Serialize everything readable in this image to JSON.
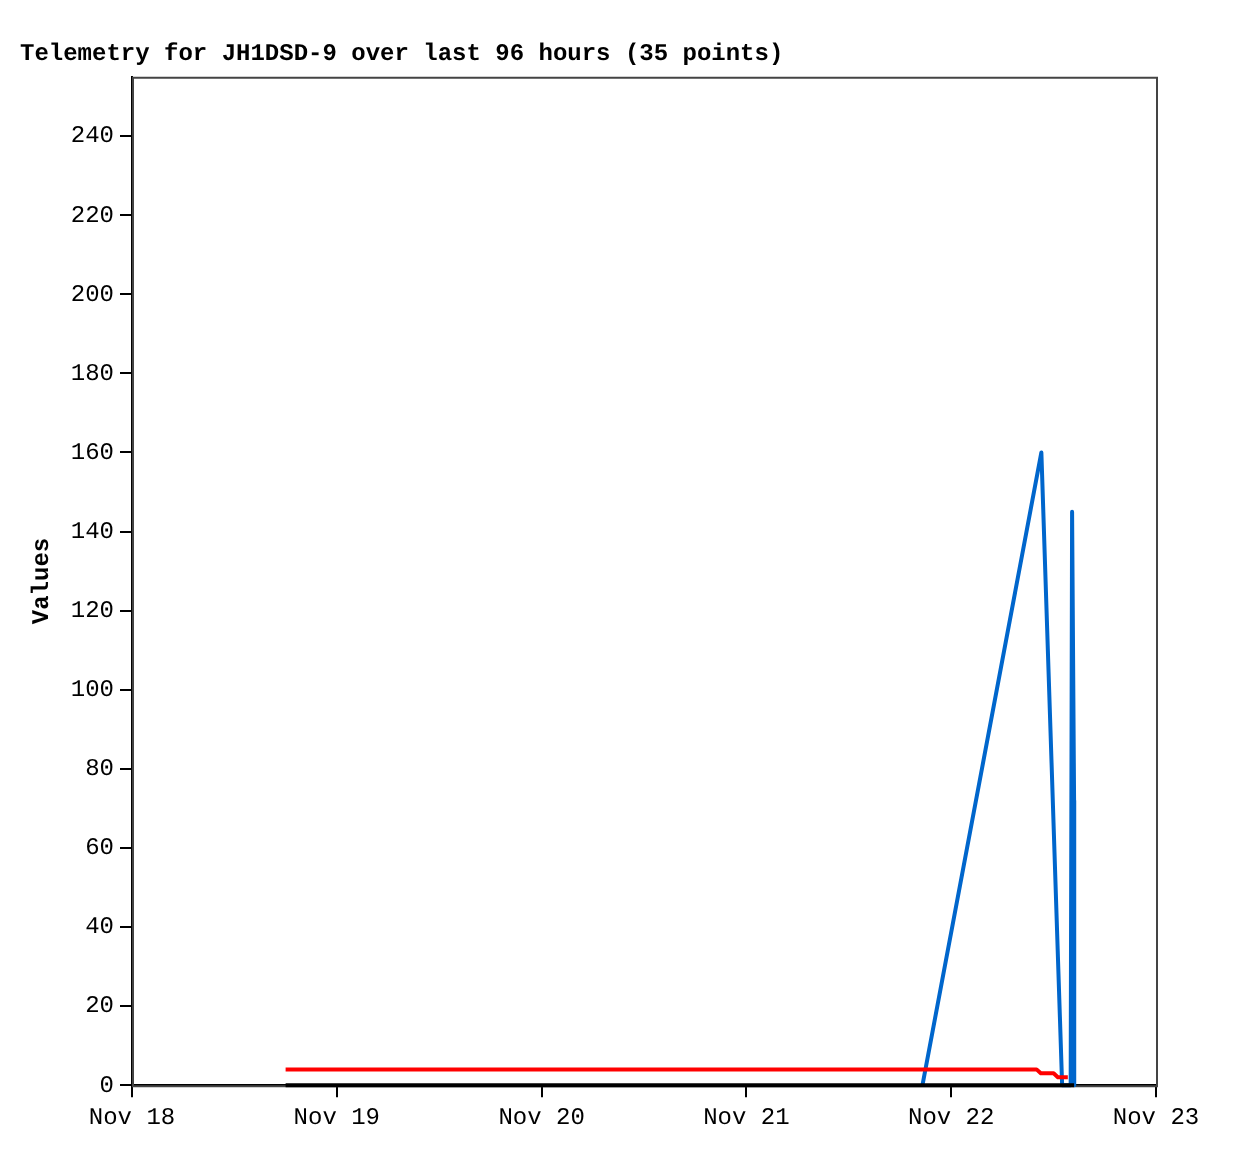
{
  "chart_data": {
    "type": "line",
    "title": "Telemetry for JH1DSD-9 over last 96 hours (35 points)",
    "ylabel": "Values",
    "xlim": [
      "--11-18",
      "--11-23"
    ],
    "xticks": [
      {
        "value": "--11-18",
        "label": "Nov 18"
      },
      {
        "value": "--11-19",
        "label": "Nov 19"
      },
      {
        "value": "--11-20",
        "label": "Nov 20"
      },
      {
        "value": "--11-21",
        "label": "Nov 21"
      },
      {
        "value": "--11-22",
        "label": "Nov 22"
      },
      {
        "value": "--11-23",
        "label": "Nov 23"
      }
    ],
    "ylim": [
      0,
      255
    ],
    "yticks": [
      0,
      20,
      40,
      60,
      80,
      100,
      120,
      140,
      160,
      180,
      200,
      220,
      240
    ],
    "grid": false,
    "legend": false,
    "marker": "none",
    "line_style": "solid",
    "series": [
      {
        "color": "#000000",
        "x": [
          "--11-18T18:00",
          "--11-22T14:24"
        ],
        "values": [
          0,
          0
        ]
      },
      {
        "color": "#ff0000",
        "x": [
          "--11-18T18:00",
          "--11-22T10:00",
          "--11-22T10:30",
          "--11-22T12:00",
          "--11-22T12:30",
          "--11-22T13:40"
        ],
        "values": [
          4,
          4,
          3,
          3,
          2,
          2
        ]
      },
      {
        "color": "#0066cc",
        "x": [
          "--11-21T20:38",
          "--11-22T10:34",
          "--11-22T13:00",
          "--11-22T14:00",
          "--11-22T14:10",
          "--11-22T14:24",
          "--11-22T14:25"
        ],
        "values": [
          0,
          160,
          0,
          0,
          145,
          72,
          0
        ]
      }
    ]
  }
}
